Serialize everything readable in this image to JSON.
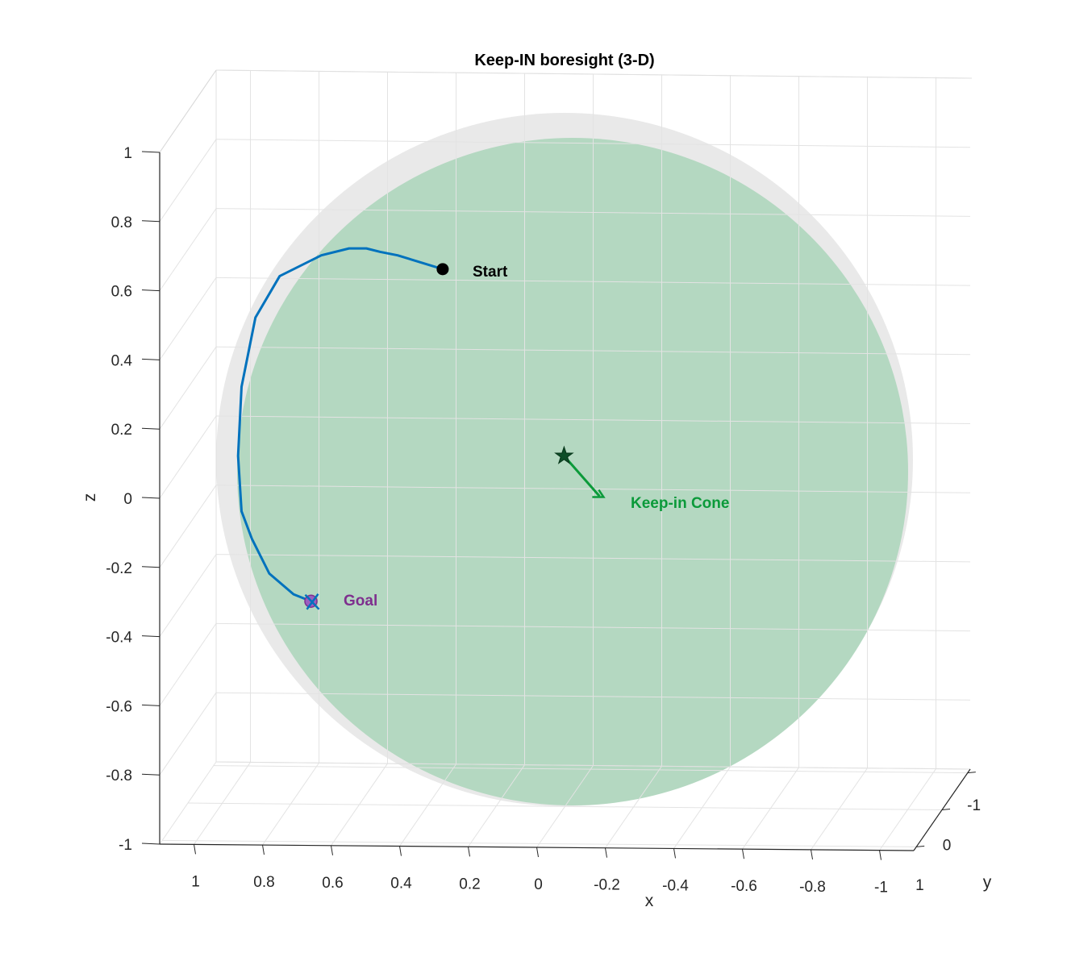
{
  "chart_data": {
    "type": "line",
    "title": "Keep-IN boresight (3-D)",
    "xlabel": "x",
    "ylabel": "y",
    "zlabel": "z",
    "xlim": [
      -1.1,
      1.1
    ],
    "ylim": [
      -1.1,
      1.1
    ],
    "zlim": [
      -1,
      1
    ],
    "x_ticks": [
      "1",
      "0.8",
      "0.6",
      "0.4",
      "0.2",
      "0",
      "-0.2",
      "-0.4",
      "-0.6",
      "-0.8",
      "-1"
    ],
    "y_ticks": [
      "-1",
      "0",
      "1"
    ],
    "z_ticks": [
      "1",
      "0.8",
      "0.6",
      "0.4",
      "0.2",
      "0",
      "-0.2",
      "-0.4",
      "-0.6",
      "-0.8",
      "-1"
    ],
    "grid": true,
    "series": [
      {
        "name": "",
        "type": "trajectory",
        "color": "#0072bd",
        "x": [
          0.27,
          0.4,
          0.45,
          0.49,
          0.54,
          0.62,
          0.74,
          0.81,
          0.85,
          0.86,
          0.85,
          0.82,
          0.77,
          0.7,
          0.65
        ],
        "z": [
          0.66,
          0.7,
          0.71,
          0.72,
          0.72,
          0.7,
          0.64,
          0.52,
          0.32,
          0.12,
          -0.04,
          -0.12,
          -0.22,
          -0.28,
          -0.3
        ]
      }
    ],
    "sphere": {
      "color": "#b4d8c1",
      "outline_color": "#e6e6e6"
    },
    "markers": [
      {
        "label": "Start",
        "x": 0.27,
        "z": 0.66,
        "symbol": "filled-circle",
        "color": "#000000"
      },
      {
        "label": "Goal",
        "x": 0.65,
        "z": -0.3,
        "symbol": "circle-x",
        "color": "#7e2f8e"
      },
      {
        "label": "Keep-in Cone",
        "x": -0.08,
        "z": 0.12,
        "symbol": "star-arrow",
        "color": "#0b9a3a"
      }
    ]
  }
}
